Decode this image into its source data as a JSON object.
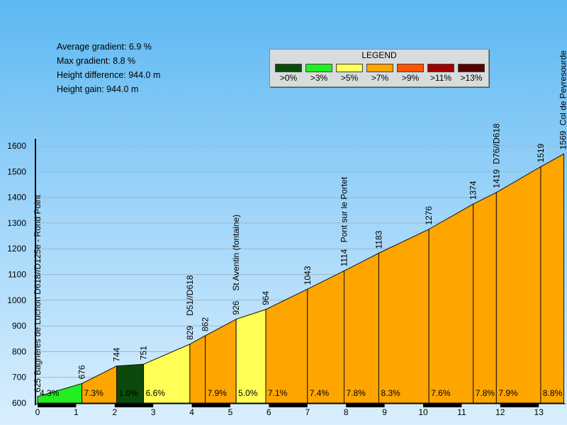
{
  "stats": [
    "Average gradient: 6.9 %",
    "Max gradient: 8.8 %",
    "Height difference: 944.0 m",
    "Height gain: 944.0 m"
  ],
  "legend": {
    "title": "LEGEND",
    "items": [
      {
        "label": ">0%",
        "color": "#0b4a0b"
      },
      {
        "label": ">3%",
        "color": "#22ee22"
      },
      {
        "label": ">5%",
        "color": "#ffff55"
      },
      {
        "label": ">7%",
        "color": "#ffa500"
      },
      {
        "label": ">9%",
        "color": "#ff5500"
      },
      {
        "label": ">11%",
        "color": "#a00000"
      },
      {
        "label": ">13%",
        "color": "#5a0000"
      }
    ]
  },
  "chart_data": {
    "type": "area",
    "xlim": [
      0,
      13.8
    ],
    "ylim": [
      600,
      1700
    ],
    "x_ticks": [
      "0",
      "1",
      "2",
      "3",
      "4",
      "5",
      "6",
      "7",
      "8",
      "9",
      "10",
      "11",
      "12",
      "13"
    ],
    "y_ticks": [
      "600",
      "700",
      "800",
      "900",
      "1000",
      "1100",
      "1200",
      "1300",
      "1400",
      "1500",
      "1600"
    ],
    "points": [
      {
        "x": 0.0,
        "y": 625,
        "label": "625",
        "name": "Bagnères de Luchon D618//D125e - Rond Point"
      },
      {
        "x": 1.15,
        "y": 676,
        "label": "676",
        "name": ""
      },
      {
        "x": 2.05,
        "y": 744,
        "label": "744",
        "name": ""
      },
      {
        "x": 2.75,
        "y": 751,
        "label": "751",
        "name": ""
      },
      {
        "x": 3.95,
        "y": 829,
        "label": "829",
        "name": "D51//D618"
      },
      {
        "x": 4.35,
        "y": 862,
        "label": "862",
        "name": ""
      },
      {
        "x": 5.15,
        "y": 926,
        "label": "926",
        "name": "St Aventin (fontaine)"
      },
      {
        "x": 5.92,
        "y": 964,
        "label": "964",
        "name": ""
      },
      {
        "x": 7.0,
        "y": 1043,
        "label": "1043",
        "name": ""
      },
      {
        "x": 7.95,
        "y": 1114,
        "label": "1114",
        "name": "Pont sur le Portet"
      },
      {
        "x": 8.85,
        "y": 1183,
        "label": "1183",
        "name": ""
      },
      {
        "x": 10.15,
        "y": 1276,
        "label": "1276",
        "name": ""
      },
      {
        "x": 11.3,
        "y": 1374,
        "label": "1374",
        "name": ""
      },
      {
        "x": 11.9,
        "y": 1419,
        "label": "1419",
        "name": "D76//D618"
      },
      {
        "x": 13.05,
        "y": 1519,
        "label": "1519",
        "name": ""
      },
      {
        "x": 13.65,
        "y": 1569,
        "label": "1569",
        "name": "Col de Peyresourde"
      }
    ],
    "segments": [
      {
        "gradient": "4.3%",
        "color": "#22ee22"
      },
      {
        "gradient": "7.3%",
        "color": "#ffa500"
      },
      {
        "gradient": "1.0%",
        "color": "#0b4a0b"
      },
      {
        "gradient": "6.6%",
        "color": "#ffff55"
      },
      {
        "gradient": "",
        "color": "#ffa500"
      },
      {
        "gradient": "7.9%",
        "color": "#ffa500"
      },
      {
        "gradient": "5.0%",
        "color": "#ffff55"
      },
      {
        "gradient": "7.1%",
        "color": "#ffa500"
      },
      {
        "gradient": "7.4%",
        "color": "#ffa500"
      },
      {
        "gradient": "7.8%",
        "color": "#ffa500"
      },
      {
        "gradient": "8.3%",
        "color": "#ffa500"
      },
      {
        "gradient": "7.6%",
        "color": "#ffa500"
      },
      {
        "gradient": "7.8%",
        "color": "#ffa500"
      },
      {
        "gradient": "7.9%",
        "color": "#ffa500"
      },
      {
        "gradient": "8.8%",
        "color": "#ffa500"
      }
    ]
  }
}
